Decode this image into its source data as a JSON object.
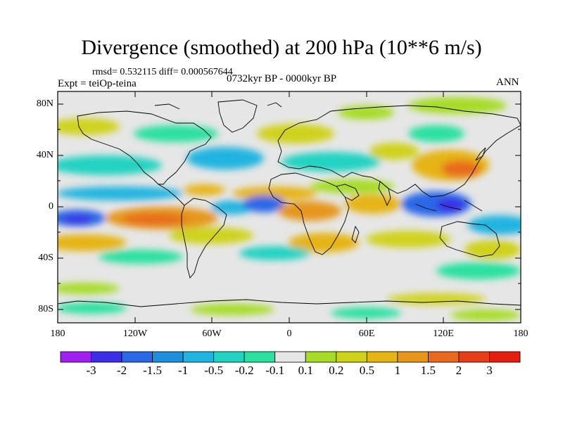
{
  "title": "Divergence (smoothed) at 200 hPa (10**6 m/s)",
  "stats": "rmsd= 0.532115 diff= 0.000567644",
  "experiment": "Expt = teiOp-teina",
  "period": "0732kyr BP - 0000kyr BP",
  "season": "ANN",
  "map": {
    "lat_ticks": [
      "80N",
      "40N",
      "0",
      "40S",
      "80S"
    ],
    "lon_ticks": [
      "180",
      "120W",
      "60W",
      "0",
      "60E",
      "120E",
      "180"
    ]
  },
  "colorbar": {
    "labels": [
      "-3",
      "-2",
      "-1.5",
      "-1",
      "-0.5",
      "-0.2",
      "-0.1",
      "0.1",
      "0.2",
      "0.5",
      "1",
      "1.5",
      "2",
      "3"
    ],
    "colors": [
      "#a020f0",
      "#3b2ee6",
      "#2a68e8",
      "#1e8fdc",
      "#20b4e0",
      "#22d2c2",
      "#2ce0a0",
      "#e6e6e6",
      "#a6dc28",
      "#cfd21a",
      "#e6b414",
      "#e6961a",
      "#e86a1e",
      "#e63e1a",
      "#e61e10"
    ]
  }
}
